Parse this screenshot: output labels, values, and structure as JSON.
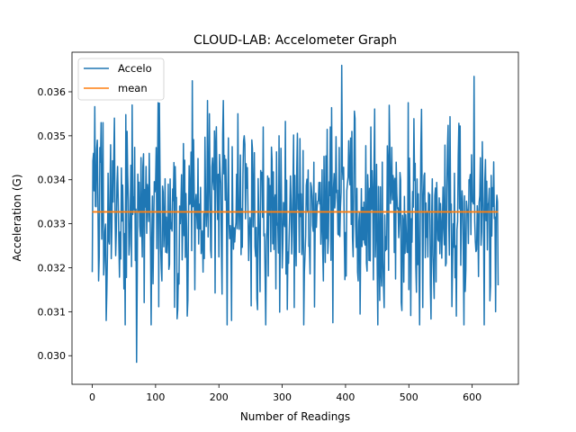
{
  "chart_data": {
    "type": "line",
    "title": "CLOUD-LAB: Accelometer Graph",
    "xlabel": "Number of Readings",
    "ylabel": "Acceleration (G)",
    "xlim": [
      -32,
      673
    ],
    "ylim": [
      0.02935,
      0.0369
    ],
    "xticks": [
      0,
      100,
      200,
      300,
      400,
      500,
      600
    ],
    "yticks": [
      0.03,
      0.031,
      0.032,
      0.033,
      0.034,
      0.035,
      0.036
    ],
    "ytick_labels": [
      "0.030",
      "0.031",
      "0.032",
      "0.033",
      "0.034",
      "0.035",
      "0.036"
    ],
    "grid": false,
    "legend_position": "top-left",
    "series": [
      {
        "name": "Accelo",
        "color": "#1f77b4",
        "n_points": 642,
        "base": 0.03327,
        "std": 0.00105,
        "seed": 7,
        "anchors": [
          [
            0,
            0.0319
          ],
          [
            2,
            0.0346
          ],
          [
            5,
            0.0334
          ],
          [
            8,
            0.0349
          ],
          [
            10,
            0.0317
          ],
          [
            13,
            0.0344
          ],
          [
            15,
            0.03265
          ],
          [
            17,
            0.0353
          ],
          [
            22,
            0.0308
          ],
          [
            28,
            0.0337
          ],
          [
            35,
            0.0354
          ],
          [
            45,
            0.0322
          ],
          [
            55,
            0.0351
          ],
          [
            63,
            0.0357
          ],
          [
            70,
            0.02985
          ],
          [
            90,
            0.0346
          ],
          [
            100,
            0.0339
          ],
          [
            110,
            0.0317
          ],
          [
            120,
            0.0339
          ],
          [
            130,
            0.0311
          ],
          [
            140,
            0.0334
          ],
          [
            150,
            0.0309
          ],
          [
            158,
            0.03625
          ],
          [
            165,
            0.0332
          ],
          [
            175,
            0.0319
          ],
          [
            185,
            0.0355
          ],
          [
            195,
            0.0348
          ],
          [
            205,
            0.0314
          ],
          [
            220,
            0.0308
          ],
          [
            230,
            0.0355
          ],
          [
            240,
            0.035
          ],
          [
            250,
            0.033
          ],
          [
            260,
            0.0313
          ],
          [
            270,
            0.0352
          ],
          [
            280,
            0.0332
          ],
          [
            295,
            0.035
          ],
          [
            310,
            0.0321
          ],
          [
            320,
            0.0341
          ],
          [
            335,
            0.0319
          ],
          [
            350,
            0.0344
          ],
          [
            365,
            0.0317
          ],
          [
            380,
            0.03075
          ],
          [
            394,
            0.0366
          ],
          [
            400,
            0.0328
          ],
          [
            410,
            0.0351
          ],
          [
            420,
            0.0317
          ],
          [
            440,
            0.0352
          ],
          [
            460,
            0.0316
          ],
          [
            480,
            0.0344
          ],
          [
            500,
            0.0315
          ],
          [
            520,
            0.0356
          ],
          [
            540,
            0.0313
          ],
          [
            560,
            0.0338
          ],
          [
            575,
            0.0309
          ],
          [
            595,
            0.034
          ],
          [
            603,
            0.03635
          ],
          [
            610,
            0.0318
          ],
          [
            620,
            0.034
          ],
          [
            630,
            0.0341
          ],
          [
            637,
            0.031
          ],
          [
            641,
            0.0316
          ]
        ]
      },
      {
        "name": "mean",
        "color": "#ff7f0e",
        "x": [
          0,
          641
        ],
        "y": [
          0.03327,
          0.03327
        ]
      }
    ]
  }
}
